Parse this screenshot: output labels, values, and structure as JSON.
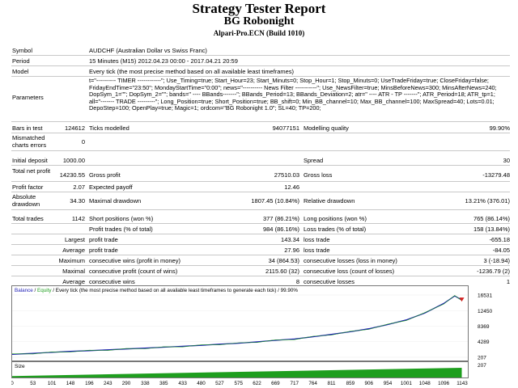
{
  "header": {
    "title": "Strategy Tester Report",
    "subtitle": "BG Robonight",
    "company": "Alpari-Pro.ECN (Build 1010)"
  },
  "info": {
    "symbol_label": "Symbol",
    "symbol_value": "AUDCHF (Australian Dollar vs Swiss Franc)",
    "period_label": "Period",
    "period_value": "15 Minutes (M15) 2012.04.23 00:00 - 2017.04.21 20:59",
    "model_label": "Model",
    "model_value": "Every tick (the most precise method based on all available least timeframes)",
    "parameters_label": "Parameters",
    "parameters_value": "t=\"---------- TIMER ------------\"; Use_Timing=true; Start_Hour=23; Start_Minuts=0; Stop_Hour=1; Stop_Minuts=0; UseTradeFriday=true; CloseFriday=false; FridayEndTime=\"23:50\"; MondayStartTime=\"0:00\"; news=\"---------- News Filter -----------\"; Use_NewsFilter=true; MinsBeforeNews=300; MinsAfterNews=240; DopSym_1=\"\"; DopSym_2=\"\"; bands=\" ---- BBands-------\"; BBands_Period=13; BBands_Deviation=2; atr=\" ---- ATR - TP -------\"; ATR_Period=18; ATR_tp=1; all=\"------- TRADE ---------\"; Long_Position=true; Short_Position=true; BB_shift=0; Min_BB_channel=10; Max_BB_channel=100; MaxSpread=40; Lots=0.01; DepoStep=100; OpenPlay=true; Magic=1; ordcom=\"BG Robonight 1.0\"; SL=40; TP=200;"
  },
  "stats": {
    "bars_label": "Bars in test",
    "bars_value": "124612",
    "ticks_label": "Ticks modelled",
    "ticks_value": "94077151",
    "quality_label": "Modelling quality",
    "quality_value": "99.90%",
    "mismatch_label": "Mismatched charts errors",
    "mismatch_value": "0",
    "deposit_label": "Initial deposit",
    "deposit_value": "1000.00",
    "spread_label": "Spread",
    "spread_value": "30",
    "netprofit_label": "Total net profit",
    "netprofit_value": "14230.55",
    "grossprofit_label": "Gross profit",
    "grossprofit_value": "27510.03",
    "grossloss_label": "Gross loss",
    "grossloss_value": "-13279.48",
    "pf_label": "Profit factor",
    "pf_value": "2.07",
    "payoff_label": "Expected payoff",
    "payoff_value": "12.46",
    "absdd_label": "Absolute drawdown",
    "absdd_value": "34.30",
    "maxdd_label": "Maximal drawdown",
    "maxdd_value": "1807.45 (10.84%)",
    "reldd_label": "Relative drawdown",
    "reldd_value": "13.21% (376.01)",
    "trades_label": "Total trades",
    "trades_value": "1142",
    "short_label": "Short positions (won %)",
    "short_value": "377 (86.21%)",
    "long_label": "Long positions (won %)",
    "long_value": "765 (86.14%)",
    "profittrades_label": "Profit trades (% of total)",
    "profittrades_value": "984 (86.16%)",
    "losstrades_label": "Loss trades (% of total)",
    "losstrades_value": "158 (13.84%)",
    "largest_label": "Largest",
    "largest_profit_label": "profit trade",
    "largest_profit_value": "143.34",
    "largest_loss_label": "loss trade",
    "largest_loss_value": "-655.18",
    "average_label": "Average",
    "average_profit_label": "profit trade",
    "average_profit_value": "27.96",
    "average_loss_label": "loss trade",
    "average_loss_value": "-84.05",
    "maximum_label": "Maximum",
    "max_cw_label": "consecutive wins (profit in money)",
    "max_cw_value": "34 (864.53)",
    "max_cl_label": "consecutive losses (loss in money)",
    "max_cl_value": "3 (-18.94)",
    "maximal_label": "Maximal",
    "mxl_cp_label": "consecutive profit (count of wins)",
    "mxl_cp_value": "2115.60 (32)",
    "mxl_cl_label": "consecutive loss (count of losses)",
    "mxl_cl_value": "-1236.79 (2)",
    "avg2_label": "Average",
    "avg_cw_label": "consecutive wins",
    "avg_cw_value": "8",
    "avg_cl_label": "consecutive losses",
    "avg_cl_value": "1"
  },
  "chart_legend": {
    "balance": "Balance",
    "slash": " / ",
    "equity": "Equity",
    "rest": " / Every tick (the most precise method based on all available least timeframes to generate each tick) / 99.90%",
    "size_label": "Size"
  },
  "colors": {
    "balance": "#1c1cb4",
    "equity": "#1e9e1e",
    "size": "#1e9e1e",
    "marker": "#d42020"
  },
  "chart_data": {
    "type": "line",
    "series": [
      {
        "name": "Balance",
        "x": [
          0,
          53,
          101,
          148,
          196,
          243,
          290,
          338,
          385,
          433,
          480,
          527,
          575,
          622,
          669,
          717,
          764,
          811,
          859,
          906,
          954,
          1001,
          1048,
          1096,
          1124,
          1142
        ],
        "values": [
          1000,
          1250,
          1500,
          1750,
          1950,
          2150,
          2400,
          2600,
          2850,
          3100,
          3350,
          3650,
          3900,
          4250,
          4650,
          5000,
          5600,
          6200,
          6900,
          7700,
          8800,
          10000,
          11800,
          14300,
          16300,
          15230
        ]
      }
    ],
    "size_series": {
      "name": "Size",
      "x": [
        0,
        1142
      ],
      "values_relative": [
        0.15,
        1.0
      ]
    },
    "yticks": [
      "16531",
      "12450",
      "8369",
      "4289",
      "207"
    ],
    "xticks": [
      "0",
      "53",
      "101",
      "148",
      "196",
      "243",
      "290",
      "338",
      "385",
      "433",
      "480",
      "527",
      "575",
      "622",
      "669",
      "717",
      "764",
      "811",
      "859",
      "906",
      "954",
      "1001",
      "1048",
      "1096",
      "1143"
    ],
    "ylim": [
      207,
      16531
    ],
    "xlim": [
      0,
      1143
    ]
  }
}
